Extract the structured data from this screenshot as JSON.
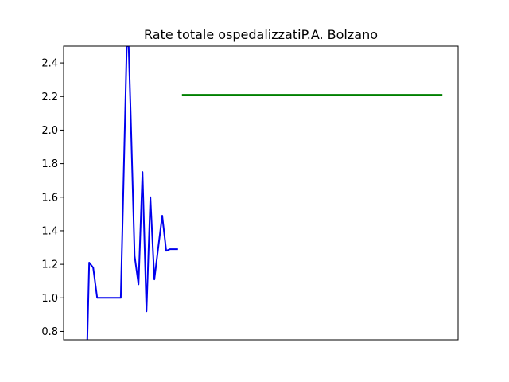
{
  "chart_data": {
    "type": "line",
    "title": "Rate totale ospedalizzatiP.A. Bolzano",
    "xlabel": "",
    "ylabel": "",
    "ylim": [
      0.75,
      2.5
    ],
    "xlim": [
      0,
      100
    ],
    "x_tick_labels_visible": false,
    "yticks": [
      0.8,
      1.0,
      1.2,
      1.4,
      1.6,
      1.8,
      2.0,
      2.2,
      2.4
    ],
    "ytick_labels": [
      "0.8",
      "1.0",
      "1.2",
      "1.4",
      "1.6",
      "1.8",
      "2.0",
      "2.2",
      "2.4"
    ],
    "grid": false,
    "series": [
      {
        "color": "#0000ee",
        "x": [
          6.0,
          6.5,
          7.5,
          8.5,
          10.0,
          12.0,
          14.5,
          16.0,
          16.5,
          17.0,
          18.0,
          19.0,
          20.0,
          21.0,
          22.0,
          23.0,
          24.0,
          25.0,
          26.0,
          27.0,
          28.0,
          29.0
        ],
        "y": [
          0.75,
          1.21,
          1.18,
          1.0,
          1.0,
          1.0,
          1.0,
          2.5,
          2.5,
          2.1,
          1.25,
          1.08,
          1.75,
          0.92,
          1.6,
          1.11,
          1.3,
          1.49,
          1.28,
          1.29,
          1.29,
          1.29
        ]
      },
      {
        "color": "#008000",
        "x": [
          30.0,
          96.0
        ],
        "y": [
          2.21,
          2.21
        ]
      }
    ]
  }
}
